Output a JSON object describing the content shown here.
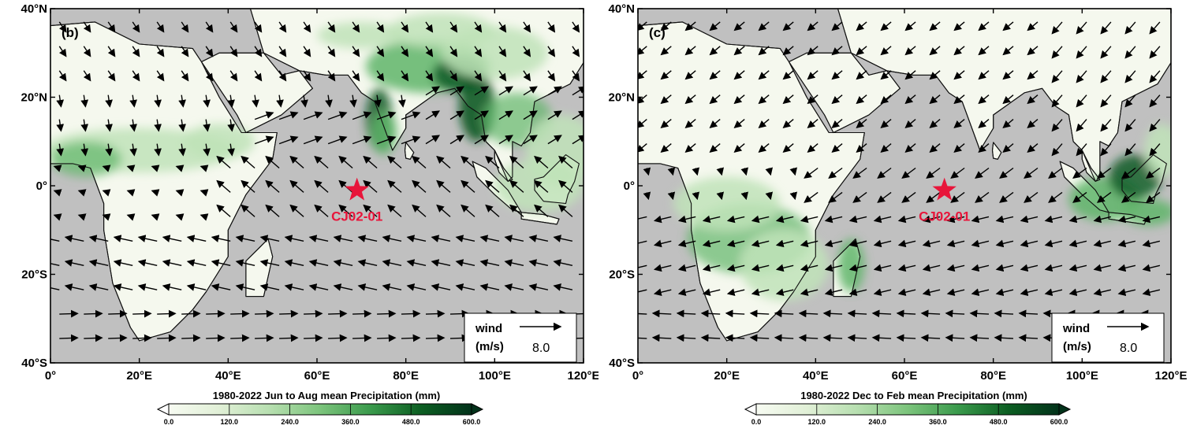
{
  "panels": [
    {
      "label": "(b)",
      "site_label": "CJ02-01",
      "colorbar_title": "1980-2022 Jun to Aug mean Precipitation (mm)",
      "legend": {
        "title": "wind",
        "units": "(m/s)",
        "value": "8.0"
      }
    },
    {
      "label": "(c)",
      "site_label": "CJ02-01",
      "colorbar_title": "1980-2022 Dec to Feb mean Precipitation (mm)",
      "legend": {
        "title": "wind",
        "units": "(m/s)",
        "value": "8.0"
      }
    }
  ],
  "axes": {
    "lat_ticks": [
      "40°N",
      "20°N",
      "0°",
      "20°S",
      "40°S"
    ],
    "lon_ticks": [
      "0°",
      "20°E",
      "40°E",
      "60°E",
      "80°E",
      "100°E",
      "120°E"
    ]
  },
  "colorbar": {
    "ticks": [
      "0.0",
      "120.0",
      "240.0",
      "360.0",
      "480.0",
      "600.0"
    ],
    "colors": [
      "#f7fbf2",
      "#e1f0d7",
      "#b7dfb0",
      "#7cc47c",
      "#3a9a4c",
      "#0c5e22",
      "#02321a"
    ]
  },
  "colors": {
    "ocean": "#c0c0c0",
    "land": "#f5f8ee",
    "green_light": "#bfe3b8",
    "green_mid": "#5fb56a",
    "green_dark": "#0d5a25",
    "site_star": "#e8153a",
    "site_label": "#e8153a"
  }
}
